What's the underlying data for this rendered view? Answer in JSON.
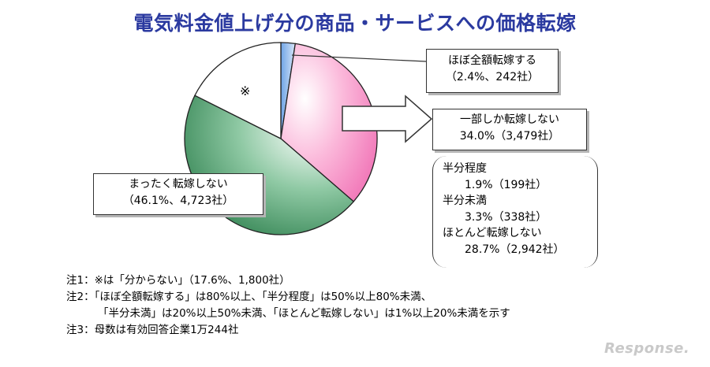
{
  "chart_data": {
    "type": "pie",
    "title": "電気料金値上げ分の商品・サービスへの価格転嫁",
    "slices": [
      {
        "label": "ほぼ全額転嫁する",
        "percent": 2.4,
        "count": 242,
        "color": "#a7c7ee"
      },
      {
        "label": "一部しか転嫁しない",
        "percent": 34.0,
        "count": 3479,
        "color": "#f06fb4"
      },
      {
        "label": "まったく転嫁しない",
        "percent": 46.1,
        "count": 4723,
        "color": "#2e8b57"
      },
      {
        "label": "※",
        "percent": 17.6,
        "count": 1800,
        "color": "#ffffff"
      }
    ]
  },
  "labels": {
    "full_name": "ほぼ全額転嫁する",
    "full_value": "（2.4%、242社）",
    "partial_name": "一部しか転嫁しない",
    "partial_value": "34.0%（3,479社）",
    "none_name": "まったく転嫁しない",
    "none_value": "（46.1%、4,723社）",
    "kome": "※",
    "half_name": "半分程度",
    "half_value": "1.9%（199社）",
    "under_half_name": "半分未満",
    "under_half_value": "3.3%（338社）",
    "almost_none_name": "ほとんど転嫁しない",
    "almost_none_value": "28.7%（2,942社）"
  },
  "notes": [
    "注1：※は「分からない」（17.6%、1,800社）",
    "注2：「ほぼ全額転嫁する」は80%以上、「半分程度」は50%以上80%未満、",
    "「半分未満」は20%以上50%未満、「ほとんど転嫁しない」は1%以上20%未満を示す",
    "注3：母数は有効回答企業1万244社"
  ],
  "watermark": "Response."
}
